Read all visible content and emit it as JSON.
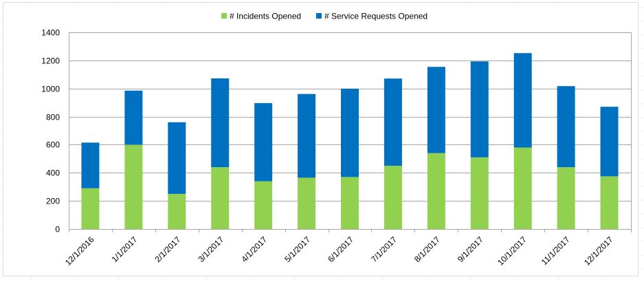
{
  "chart_data": {
    "type": "bar",
    "stacked": true,
    "title": "",
    "xlabel": "",
    "ylabel": "",
    "categories": [
      "12/1/2016",
      "1/1/2017",
      "2/1/2017",
      "3/1/2017",
      "4/1/2017",
      "5/1/2017",
      "6/1/2017",
      "7/1/2017",
      "8/1/2017",
      "9/1/2017",
      "10/1/2017",
      "11/1/2017",
      "12/1/2017"
    ],
    "series": [
      {
        "name": "# Incidents Opened",
        "color": "#92d050",
        "values": [
          290,
          600,
          250,
          440,
          340,
          365,
          370,
          450,
          540,
          510,
          580,
          440,
          375
        ]
      },
      {
        "name": "# Service Requests Opened",
        "color": "#0070c0",
        "values": [
          325,
          385,
          510,
          632,
          556,
          596,
          629,
          621,
          614,
          683,
          672,
          577,
          495
        ]
      }
    ],
    "ylim": [
      0,
      1400
    ],
    "yticks": [
      0,
      200,
      400,
      600,
      800,
      1000,
      1200,
      1400
    ],
    "grid": true,
    "legend_position": "top"
  }
}
